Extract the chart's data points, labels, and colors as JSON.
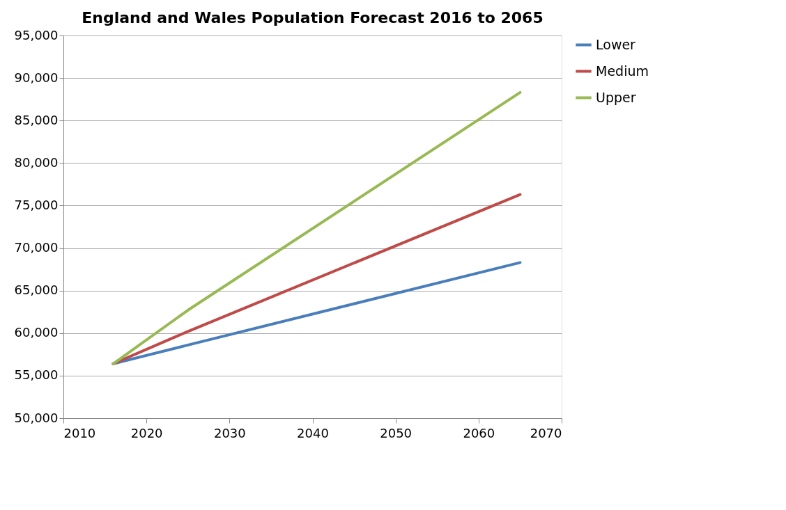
{
  "chart_data": {
    "type": "line",
    "title": "England and Wales Population Forecast 2016 to 2065",
    "x": [
      2016,
      2025,
      2065
    ],
    "series": [
      {
        "name": "Lower",
        "color": "#4a7ebb",
        "values": [
          56400,
          58600,
          68300
        ]
      },
      {
        "name": "Medium",
        "color": "#be4b48",
        "values": [
          56400,
          60200,
          76300
        ]
      },
      {
        "name": "Upper",
        "color": "#98b954",
        "values": [
          56400,
          62700,
          88300
        ]
      }
    ],
    "xlim": [
      2010,
      2070
    ],
    "xticks": [
      2010,
      2020,
      2030,
      2040,
      2050,
      2060,
      2070
    ],
    "ylim": [
      50000,
      95000
    ],
    "yticks": [
      {
        "value": 50000,
        "label": "50,000"
      },
      {
        "value": 55000,
        "label": "55,000"
      },
      {
        "value": 60000,
        "label": "60,000"
      },
      {
        "value": 65000,
        "label": "65,000"
      },
      {
        "value": 70000,
        "label": "70,000"
      },
      {
        "value": 75000,
        "label": "75,000"
      },
      {
        "value": 80000,
        "label": "80,000"
      },
      {
        "value": 85000,
        "label": "85,000"
      },
      {
        "value": 90000,
        "label": "90,000"
      },
      {
        "value": 95000,
        "label": "95,000"
      }
    ],
    "grid": "y",
    "legend": "right",
    "marker": "none",
    "line_style": "solid"
  }
}
